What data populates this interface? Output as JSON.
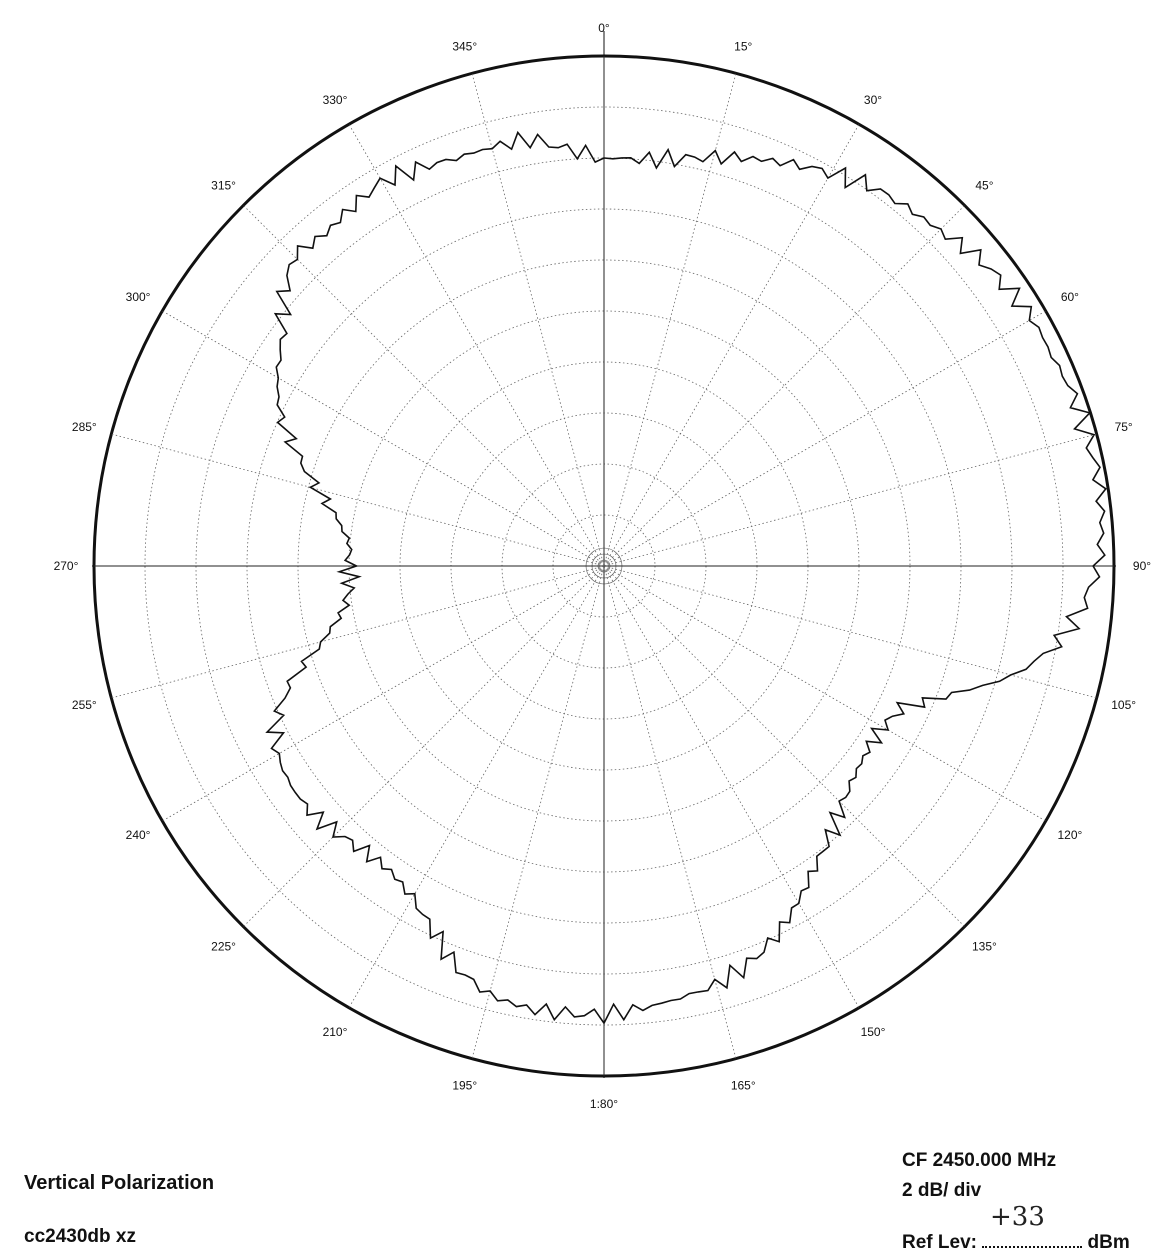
{
  "chart_data": {
    "type": "polar",
    "angle_unit": "deg",
    "angle_direction": "clockwise",
    "zero_at": "top",
    "angle_tick_labels": [
      "0°",
      "15°",
      "30°",
      "45°",
      "60°",
      "75°",
      "90°",
      "105°",
      "120°",
      "135°",
      "150°",
      "165°",
      "1:80°",
      "195°",
      "210°",
      "225°",
      "240°",
      "255°",
      "270°",
      "285°",
      "300°",
      "315°",
      "330°",
      "345°"
    ],
    "radial_divisions": 10,
    "radial_unit": "dB",
    "grid": true,
    "series": [
      {
        "theta_deg": [
          0,
          5,
          10,
          15,
          20,
          25,
          30,
          35,
          40,
          45,
          50,
          55,
          60,
          65,
          70,
          75,
          80,
          85,
          90,
          95,
          100,
          105,
          110,
          115,
          120,
          125,
          130,
          135,
          140,
          145,
          150,
          155,
          160,
          165,
          170,
          175,
          180,
          185,
          190,
          195,
          200,
          205,
          210,
          215,
          220,
          225,
          230,
          235,
          240,
          245,
          250,
          255,
          260,
          265,
          270,
          275,
          280,
          285,
          290,
          295,
          300,
          305,
          310,
          315,
          320,
          325,
          330,
          335,
          340,
          345,
          350,
          355
        ],
        "r_divisions": [
          8.0,
          8.0,
          8.1,
          8.3,
          8.5,
          8.7,
          8.9,
          9.1,
          9.2,
          9.3,
          9.5,
          9.6,
          9.7,
          9.7,
          9.8,
          9.8,
          9.85,
          9.8,
          9.7,
          9.4,
          9.0,
          8.3,
          7.3,
          6.5,
          6.3,
          6.3,
          6.4,
          6.6,
          6.9,
          7.2,
          7.6,
          8.0,
          8.3,
          8.5,
          8.6,
          8.7,
          8.8,
          8.8,
          8.8,
          8.7,
          8.4,
          7.9,
          7.5,
          7.3,
          7.3,
          7.4,
          7.5,
          7.5,
          7.4,
          7.1,
          6.5,
          5.7,
          5.2,
          5.0,
          5.0,
          5.0,
          5.3,
          5.8,
          6.4,
          7.0,
          7.4,
          7.7,
          8.2,
          8.6,
          8.5,
          8.6,
          8.7,
          8.6,
          8.5,
          8.5,
          8.5,
          8.2
        ]
      }
    ]
  },
  "notes": {
    "polarization": "Vertical Polarization",
    "file": "cc2430db xz",
    "center_freq": "CF  2450.000 MHz",
    "scale": "2 dB/ div",
    "ref_label": "Ref Lev:",
    "ref_value": "+33",
    "ref_unit": "dBm"
  }
}
